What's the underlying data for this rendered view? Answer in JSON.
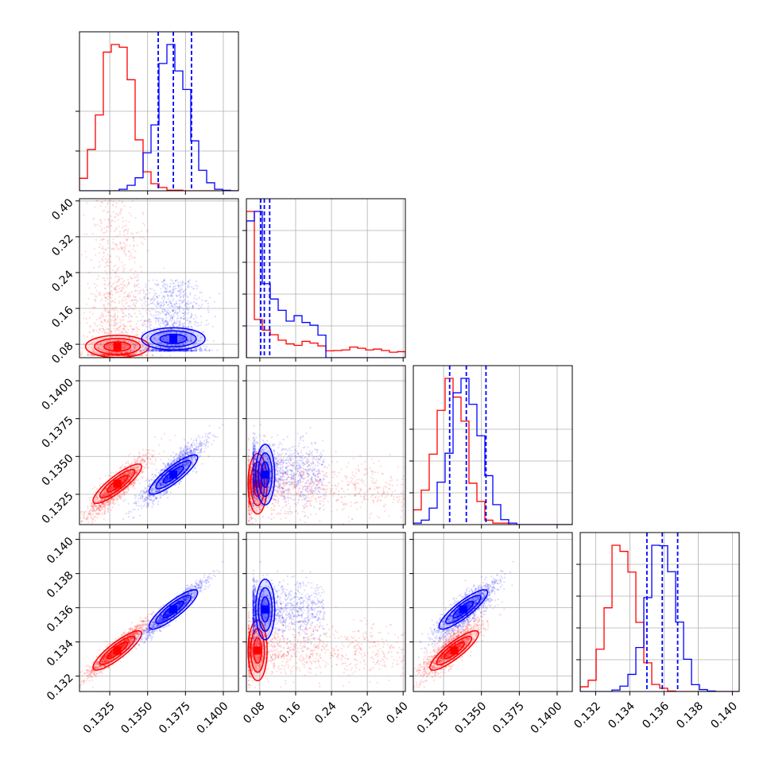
{
  "chart_data": {
    "type": "corner",
    "title": "",
    "colors": {
      "red": "#ff0000",
      "blue": "#0000ff",
      "grid": "#b0b0b0",
      "axis": "#000000"
    },
    "series": [
      {
        "color": "#ff0000",
        "means": [
          0.133,
          0.078,
          0.133,
          0.1336
        ],
        "sds": [
          0.001,
          0.06,
          0.001,
          0.0008
        ],
        "contour_center": [
          0.133,
          0.075,
          0.1332,
          0.1335
        ],
        "quantiles": []
      },
      {
        "color": "#0000ff",
        "means": [
          0.1367,
          0.092,
          0.134,
          0.1359
        ],
        "sds": [
          0.001,
          0.03,
          0.001,
          0.0008
        ],
        "contour_center": [
          0.1367,
          0.092,
          0.1338,
          0.1359
        ],
        "quantiles": [
          [
            0.1357,
            0.1367,
            0.1379
          ],
          [
            0.082,
            0.09,
            0.102
          ],
          [
            0.1329,
            0.134,
            0.1353
          ],
          [
            0.135,
            0.1359,
            0.1368
          ]
        ]
      }
    ],
    "axes": [
      {
        "range": [
          0.1305,
          0.141
        ],
        "ticks": [
          0.1325,
          0.135,
          0.1375,
          0.14
        ],
        "tick_labels": [
          "0.1325",
          "0.1350",
          "0.1375",
          "0.1400"
        ]
      },
      {
        "range": [
          0.05,
          0.405
        ],
        "ticks": [
          0.08,
          0.16,
          0.24,
          0.32,
          0.4
        ],
        "tick_labels": [
          "0.08",
          "0.16",
          "0.24",
          "0.32",
          "0.40"
        ]
      },
      {
        "range": [
          0.1305,
          0.141
        ],
        "ticks": [
          0.1325,
          0.135,
          0.1375,
          0.14
        ],
        "tick_labels": [
          "0.1325",
          "0.1350",
          "0.1375",
          "0.1400"
        ]
      },
      {
        "range": [
          0.1311,
          0.1404
        ],
        "ticks": [
          0.132,
          0.134,
          0.136,
          0.138,
          0.14
        ],
        "tick_labels": [
          "0.132",
          "0.134",
          "0.136",
          "0.138",
          "0.140"
        ]
      }
    ],
    "hist_ticks": [
      [
        0.25,
        0.5
      ],
      [
        0.2,
        0.4,
        0.6,
        0.8
      ],
      [
        0.2,
        0.4,
        0.6
      ],
      [
        0.2,
        0.4,
        0.6,
        0.8
      ]
    ],
    "grid": true,
    "legend": "none"
  }
}
